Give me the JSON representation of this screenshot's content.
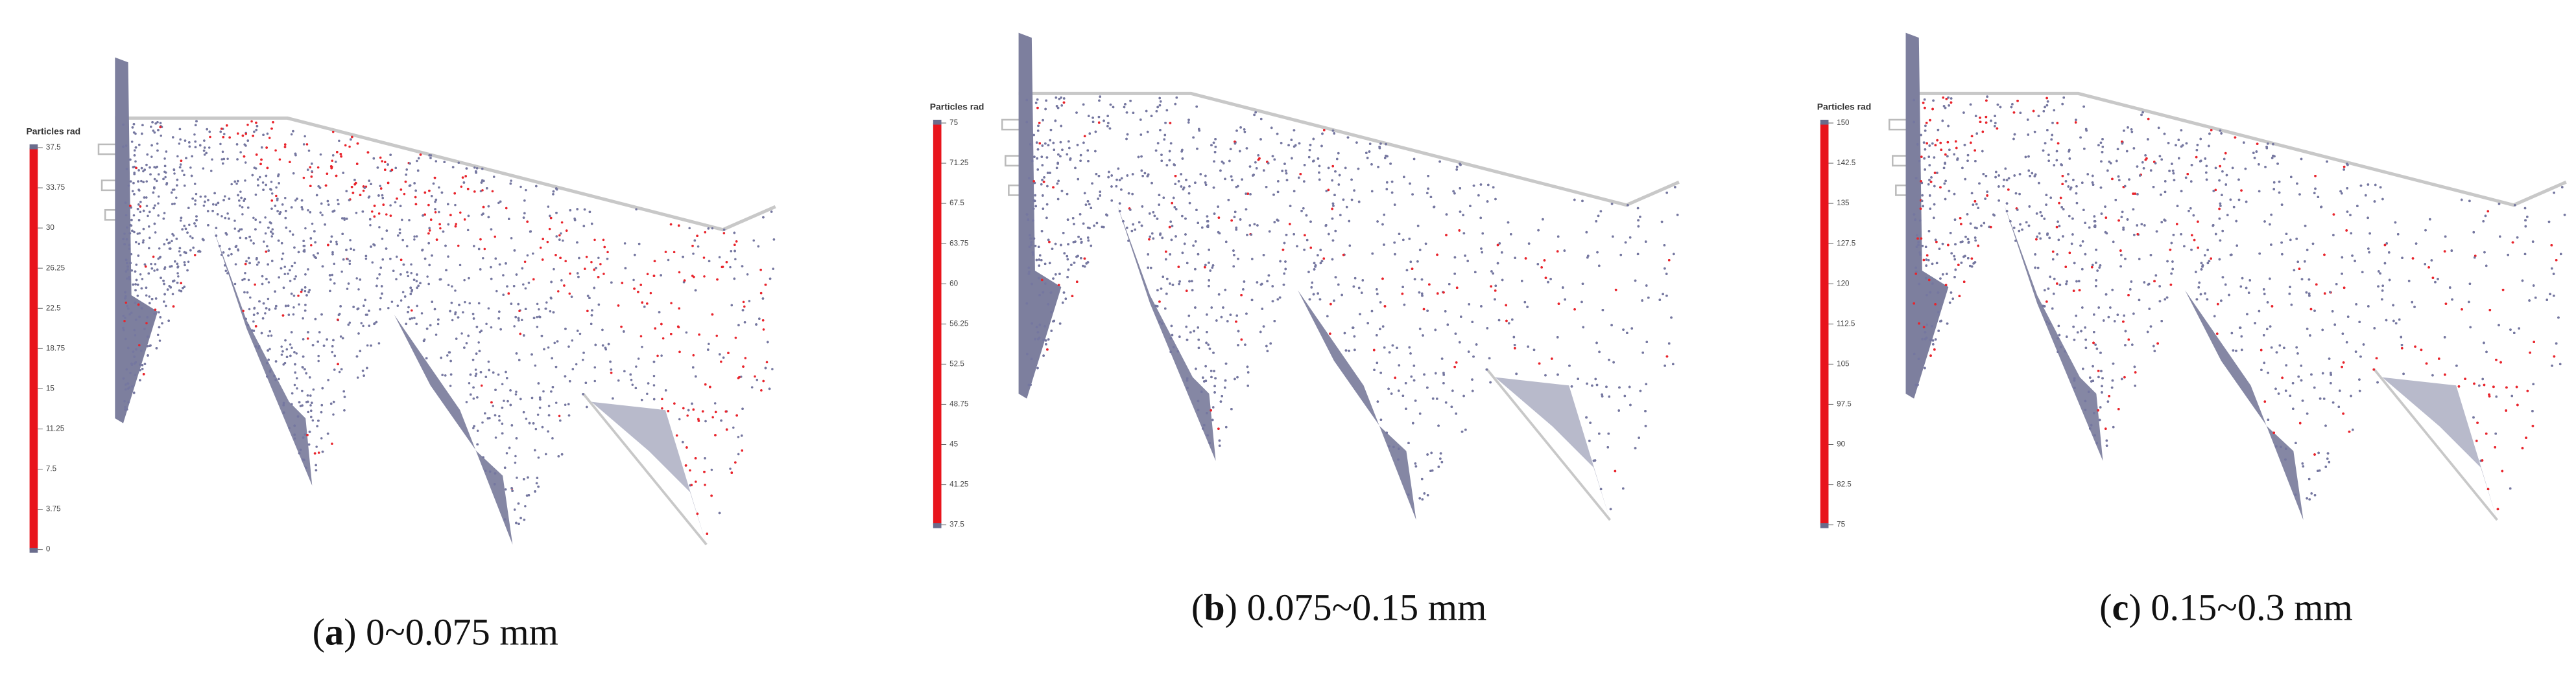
{
  "panels": [
    {
      "colorbar_title": "Particles rad",
      "ticks": [
        "37.5",
        "33.75",
        "30",
        "26.25",
        "22.5",
        "18.75",
        "15",
        "11.25",
        "7.5",
        "3.75",
        "0"
      ],
      "caption": {
        "open": "(",
        "label": "a",
        "text": ") 0~0.075 mm"
      }
    },
    {
      "colorbar_title": "Particles rad",
      "ticks": [
        "75",
        "71.25",
        "67.5",
        "63.75",
        "60",
        "56.25",
        "52.5",
        "48.75",
        "45",
        "41.25",
        "37.5"
      ],
      "caption": {
        "open": "(",
        "label": "b",
        "text": ") 0.075~0.15 mm"
      }
    },
    {
      "colorbar_title": "Particles rad",
      "ticks": [
        "150",
        "142.5",
        "135",
        "127.5",
        "120",
        "112.5",
        "105",
        "97.5",
        "90",
        "82.5",
        "75"
      ],
      "caption": {
        "open": "(",
        "label": "c",
        "text": ") 0.15~0.3 mm"
      }
    }
  ]
}
